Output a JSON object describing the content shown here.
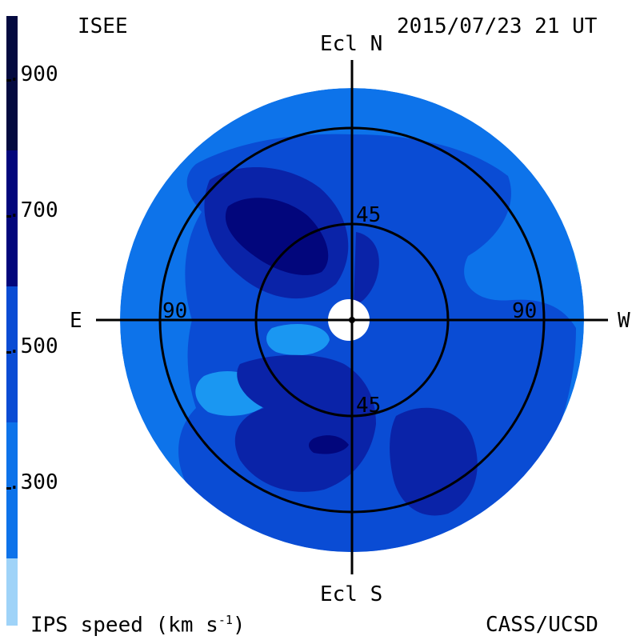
{
  "header": {
    "left_label": "ISEE",
    "timestamp": "2015/07/23 21 UT"
  },
  "footer": {
    "left_label": "IPS speed (km s",
    "left_label_exp": "-1",
    "left_label_close": ")",
    "right_label": "CASS/UCSD"
  },
  "color_scale": {
    "ticks": [
      ".900",
      ".700",
      ".500",
      ".300"
    ],
    "bands": [
      "#040a40",
      "#02067c",
      "#0a23a8",
      "#0a4cd4",
      "#0d73ea",
      "#1a97f2",
      "#9fd3f8"
    ]
  },
  "map": {
    "axis_labels": {
      "north": "Ecl N",
      "south": "Ecl S",
      "east": "E",
      "west": "W"
    },
    "ring_labels": {
      "inner_top": "45",
      "inner_bottom": "45",
      "outer_left": "90",
      "outer_right": "90"
    },
    "colors": {
      "background_disk": "#0d73ea",
      "mid_region": "#0a4cd4",
      "fast_region": "#0a23a8",
      "fastest_region": "#02067c",
      "slow_region": "#1a97f2",
      "grid_line": "#000000",
      "sun_occulter": "#ffffff"
    }
  }
}
